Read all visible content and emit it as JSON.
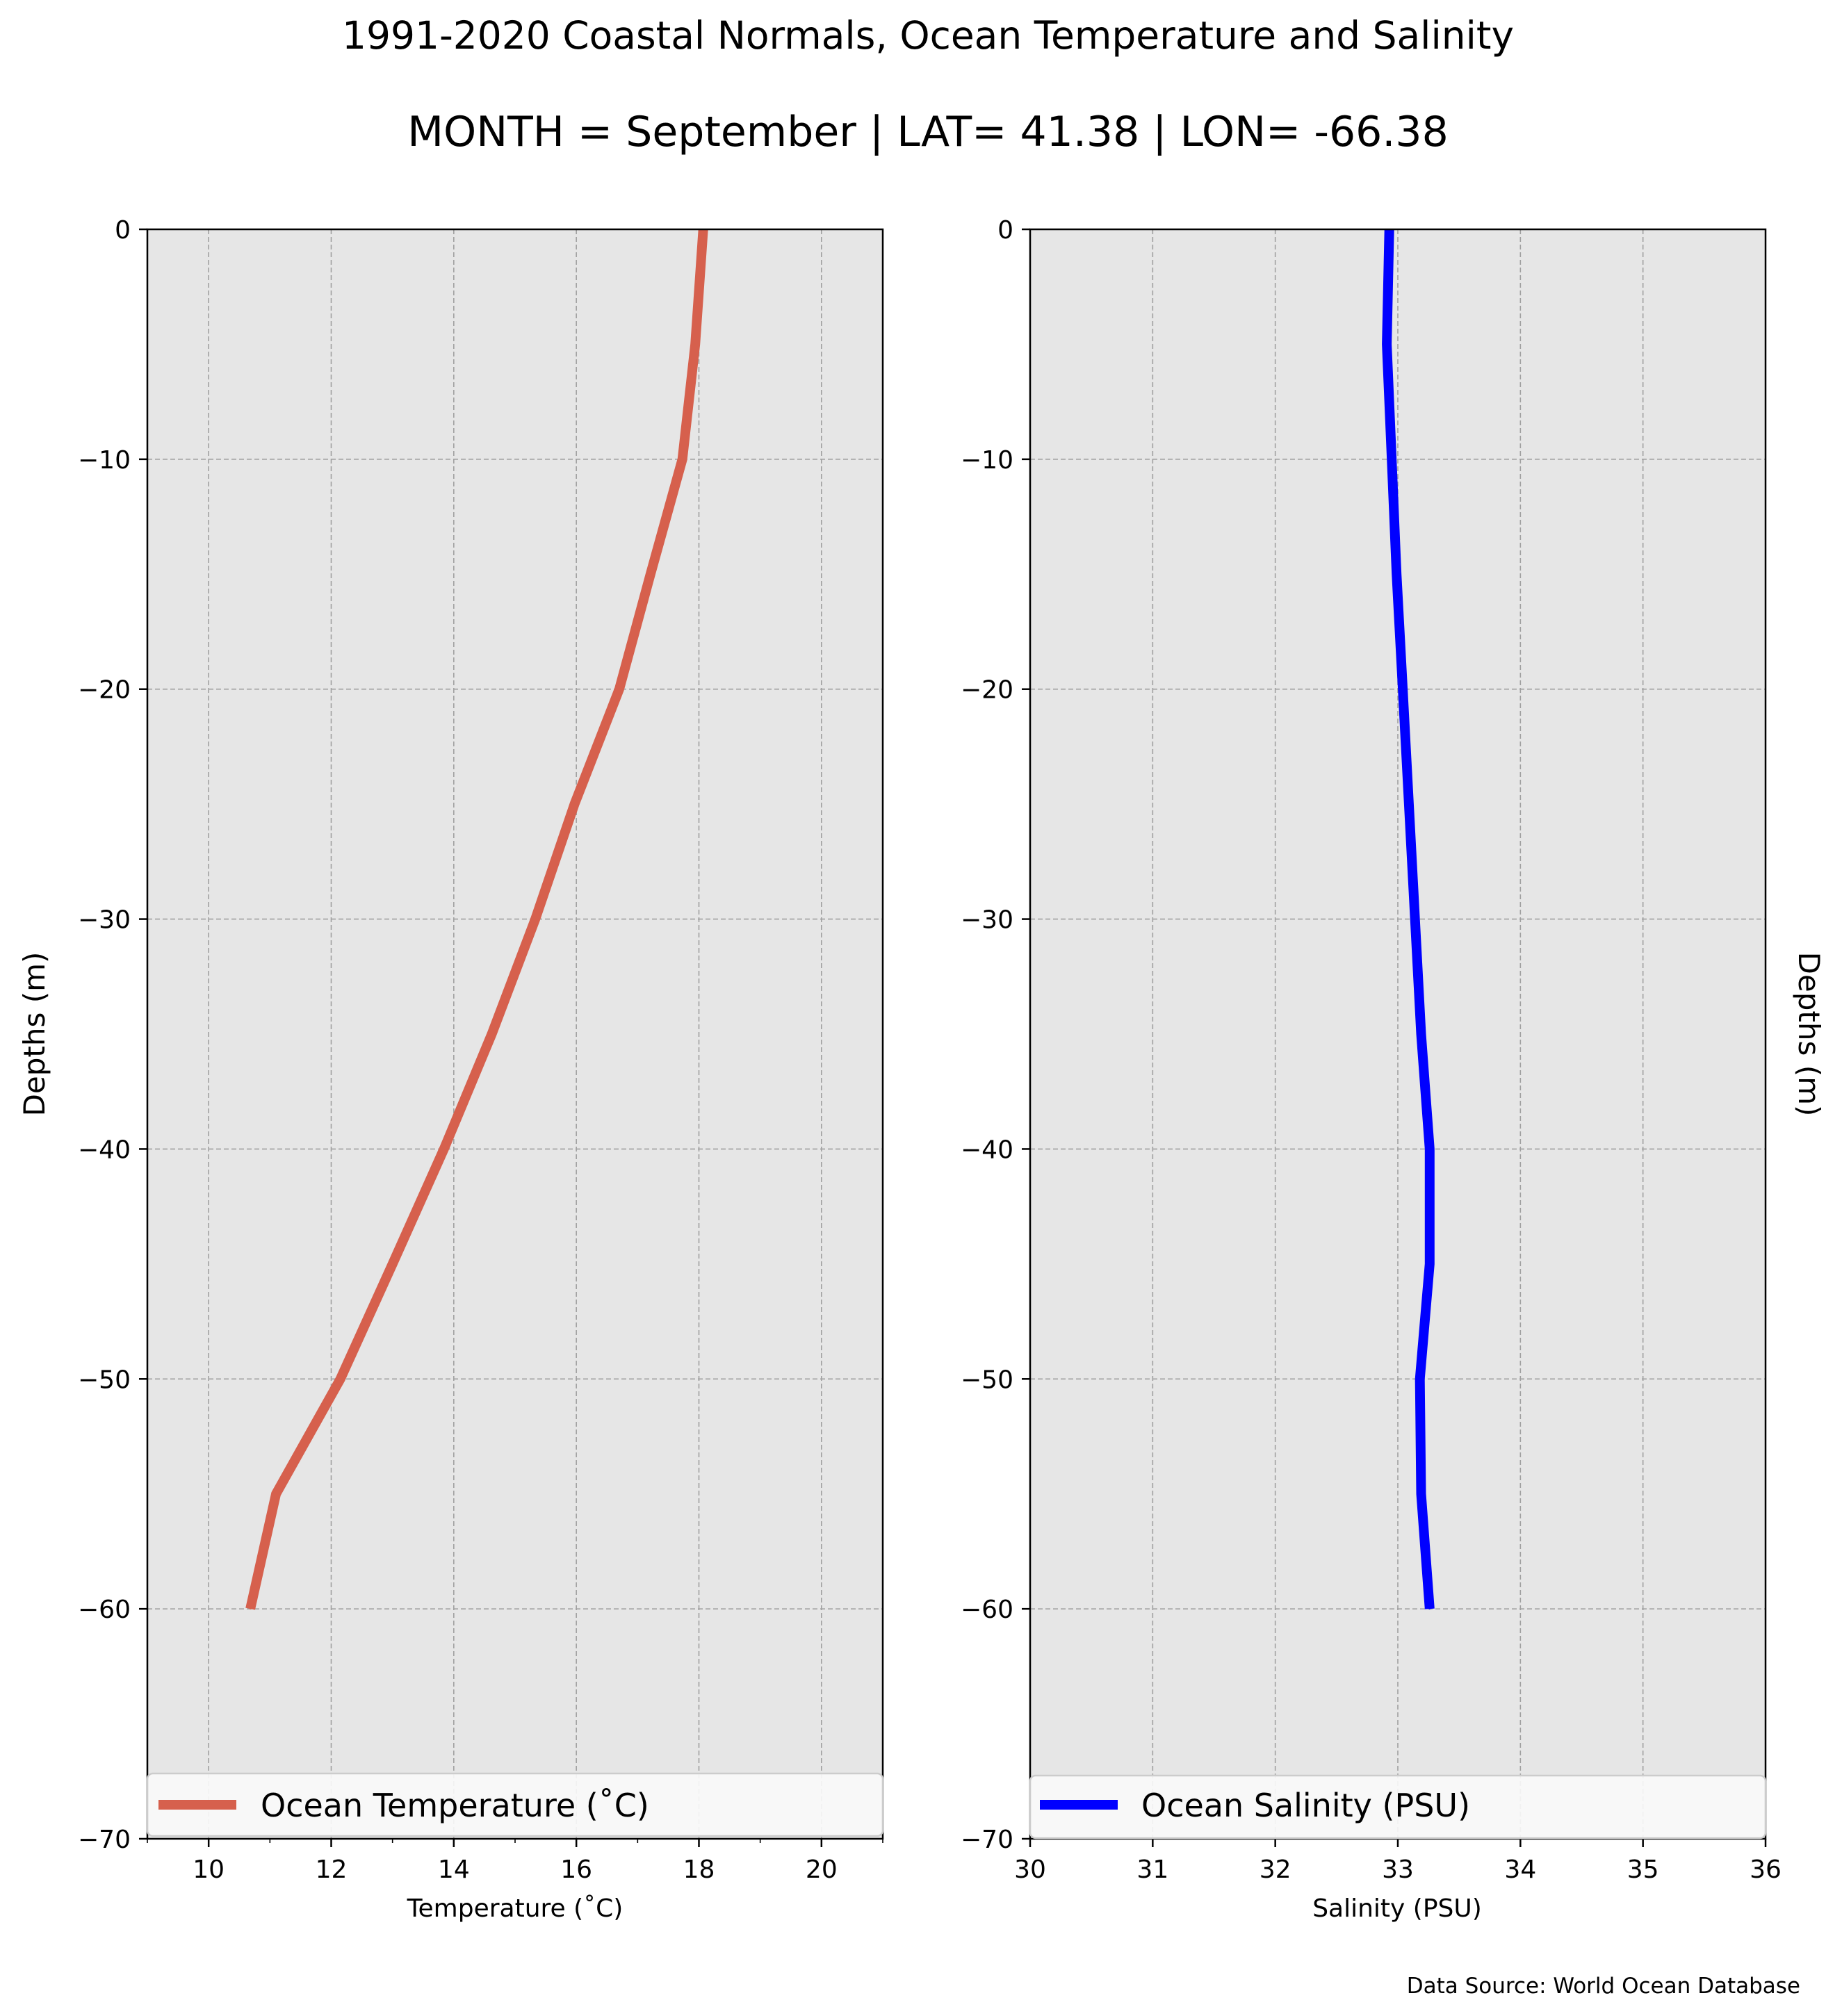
{
  "title": "1991-2020 Coastal Normals, Ocean Temperature and Salinity",
  "subtitle": "MONTH = September | LAT= 41.38 | LON= -66.38",
  "source": "Data Source: World Ocean Database",
  "colors": {
    "background": "#e6e6e6",
    "grid": "#a0a0a0",
    "temperature": "#d6604d",
    "salinity": "#0000ff"
  },
  "chart_data": [
    {
      "type": "line",
      "xlabel": "Temperature ($^\\circ$C)",
      "xlabel_display": "Temperature (˚C)",
      "ylabel": "Depths (m)",
      "xlim": [
        9,
        21
      ],
      "ylim": [
        -70,
        0
      ],
      "xticks": [
        10,
        12,
        14,
        16,
        18,
        20
      ],
      "xtick_labels": [
        "10",
        "12",
        "14",
        "16",
        "18",
        "20"
      ],
      "yticks": [
        0,
        -10,
        -20,
        -30,
        -40,
        -50,
        -60,
        -70
      ],
      "ytick_labels": [
        "0",
        "−10",
        "−20",
        "−30",
        "−40",
        "−50",
        "−60",
        "−70"
      ],
      "grid": true,
      "legend_placement": "lower-center",
      "series": [
        {
          "name": "Ocean Temperature (˚C)",
          "x": [
            18.07,
            17.94,
            17.73,
            17.21,
            16.7,
            15.97,
            15.33,
            14.62,
            13.84,
            13.0,
            12.15,
            11.1,
            10.68
          ],
          "y": [
            0,
            -5,
            -10,
            -15,
            -20,
            -25,
            -30,
            -35,
            -40,
            -45,
            -50,
            -55,
            -60
          ]
        }
      ]
    },
    {
      "type": "line",
      "xlabel": "Salinity (PSU)",
      "ylabel": "Depths (m)",
      "xlim": [
        30,
        36
      ],
      "ylim": [
        -70,
        0
      ],
      "xticks": [
        30,
        31,
        32,
        33,
        34,
        35,
        36
      ],
      "xtick_labels": [
        "30",
        "31",
        "32",
        "33",
        "34",
        "35",
        "36"
      ],
      "yticks": [
        0,
        -10,
        -20,
        -30,
        -40,
        -50,
        -60,
        -70
      ],
      "ytick_labels": [
        "0",
        "−10",
        "−20",
        "−30",
        "−40",
        "−50",
        "−60",
        "−70"
      ],
      "grid": true,
      "legend_placement": "lower-center",
      "series": [
        {
          "name": "Ocean Salinity (PSU)",
          "x": [
            32.93,
            32.91,
            32.95,
            32.99,
            33.04,
            33.09,
            33.14,
            33.19,
            33.26,
            33.26,
            33.18,
            33.19,
            33.26
          ],
          "y": [
            0,
            -5,
            -10,
            -15,
            -20,
            -25,
            -30,
            -35,
            -40,
            -45,
            -50,
            -55,
            -60
          ]
        }
      ]
    }
  ]
}
